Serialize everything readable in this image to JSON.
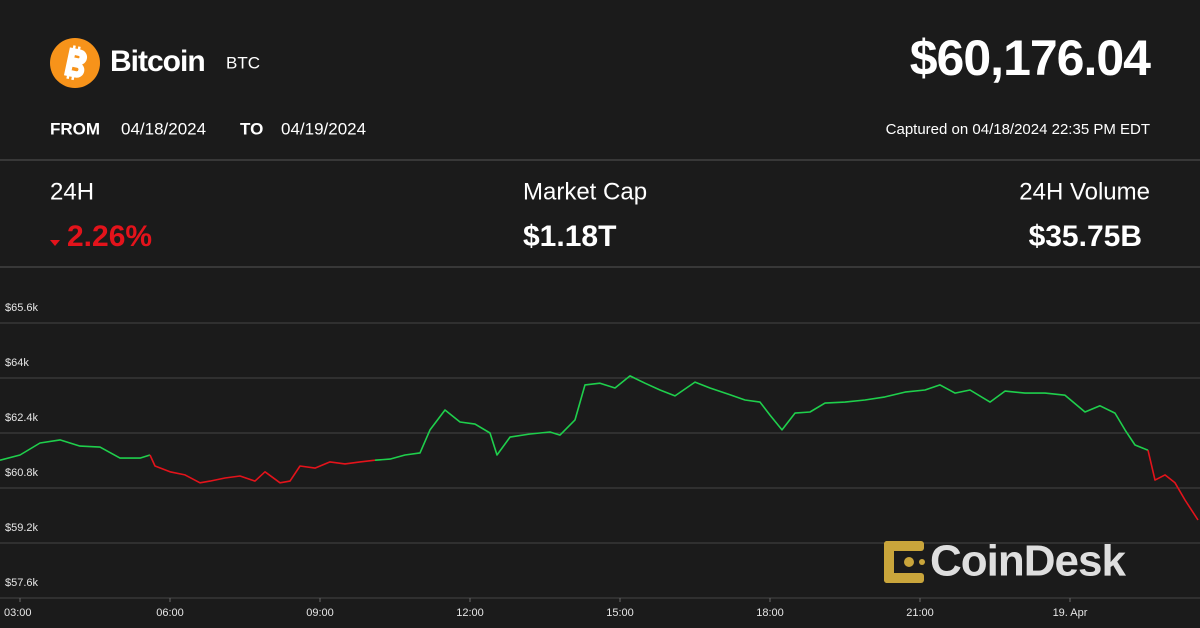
{
  "header": {
    "name": "Bitcoin",
    "symbol": "BTC",
    "price": "$60,176.04",
    "from_label": "FROM",
    "from_date": "04/18/2024",
    "to_label": "TO",
    "to_date": "04/19/2024",
    "captured": "Captured on 04/18/2024 22:35 PM EDT"
  },
  "stats": [
    {
      "label": "24H",
      "value": "2.26%"
    },
    {
      "label": "Market Cap",
      "value": "$1.18T"
    },
    {
      "label": "24H Volume",
      "value": "$35.75B"
    }
  ],
  "watermark": "CoinDesk",
  "chart_data": {
    "type": "line",
    "x": [
      2.6,
      3.0,
      3.4,
      3.8,
      4.2,
      4.6,
      5.0,
      5.4,
      5.6,
      5.7,
      6.0,
      6.3,
      6.6,
      6.8,
      7.1,
      7.4,
      7.7,
      7.9,
      8.2,
      8.4,
      8.6,
      8.9,
      9.2,
      9.5,
      9.8,
      10.1,
      10.4,
      10.7,
      11.0,
      11.2,
      11.5,
      11.8,
      12.1,
      12.4,
      12.54,
      12.8,
      13.2,
      13.6,
      13.8,
      14.1,
      14.3,
      14.6,
      14.9,
      15.2,
      15.5,
      15.8,
      16.1,
      16.5,
      16.8,
      17.2,
      17.5,
      17.8,
      18.0,
      18.24,
      18.5,
      18.8,
      19.1,
      19.5,
      19.9,
      20.3,
      20.7,
      21.1,
      21.4,
      21.7,
      22.0,
      22.4,
      22.7,
      23.1,
      23.5,
      23.9,
      24.3,
      24.6,
      24.9,
      25.1,
      25.3,
      25.56,
      25.7,
      25.9,
      26.1,
      26.3,
      26.56
    ],
    "values": [
      61610,
      61760,
      62110,
      62200,
      62020,
      61990,
      61670,
      61670,
      61760,
      61440,
      61270,
      61180,
      60950,
      61000,
      61090,
      61150,
      61000,
      61270,
      60950,
      61000,
      61440,
      61380,
      61560,
      61500,
      61560,
      61610,
      61640,
      61760,
      61820,
      62490,
      63070,
      62720,
      62660,
      62400,
      61760,
      62280,
      62370,
      62430,
      62340,
      62780,
      63800,
      63850,
      63710,
      64060,
      63850,
      63650,
      63480,
      63880,
      63710,
      63510,
      63360,
      63300,
      62920,
      62490,
      62980,
      63010,
      63270,
      63300,
      63360,
      63450,
      63590,
      63650,
      63800,
      63560,
      63650,
      63300,
      63620,
      63560,
      63560,
      63500,
      63010,
      63190,
      62980,
      62490,
      62050,
      61900,
      61030,
      61180,
      60950,
      60450,
      59870
    ],
    "up_color": "#1fcf4c",
    "down_color": "#e3131b",
    "xlim": [
      2.6,
      26.6
    ],
    "ylim": [
      57600,
      67200
    ],
    "xticks": [
      {
        "value": 3,
        "label": "03:00"
      },
      {
        "value": 6,
        "label": "06:00"
      },
      {
        "value": 9,
        "label": "09:00"
      },
      {
        "value": 12,
        "label": "12:00"
      },
      {
        "value": 15,
        "label": "15:00"
      },
      {
        "value": 18,
        "label": "18:00"
      },
      {
        "value": 21,
        "label": "21:00"
      },
      {
        "value": 24,
        "label": "19. Apr"
      }
    ],
    "yticks": [
      {
        "value": 57600,
        "label": "$57.6k"
      },
      {
        "value": 59200,
        "label": "$59.2k"
      },
      {
        "value": 60800,
        "label": "$60.8k"
      },
      {
        "value": 62400,
        "label": "$62.4k"
      },
      {
        "value": 64000,
        "label": "$64k"
      },
      {
        "value": 65600,
        "label": "$65.6k"
      }
    ],
    "grid": true
  }
}
